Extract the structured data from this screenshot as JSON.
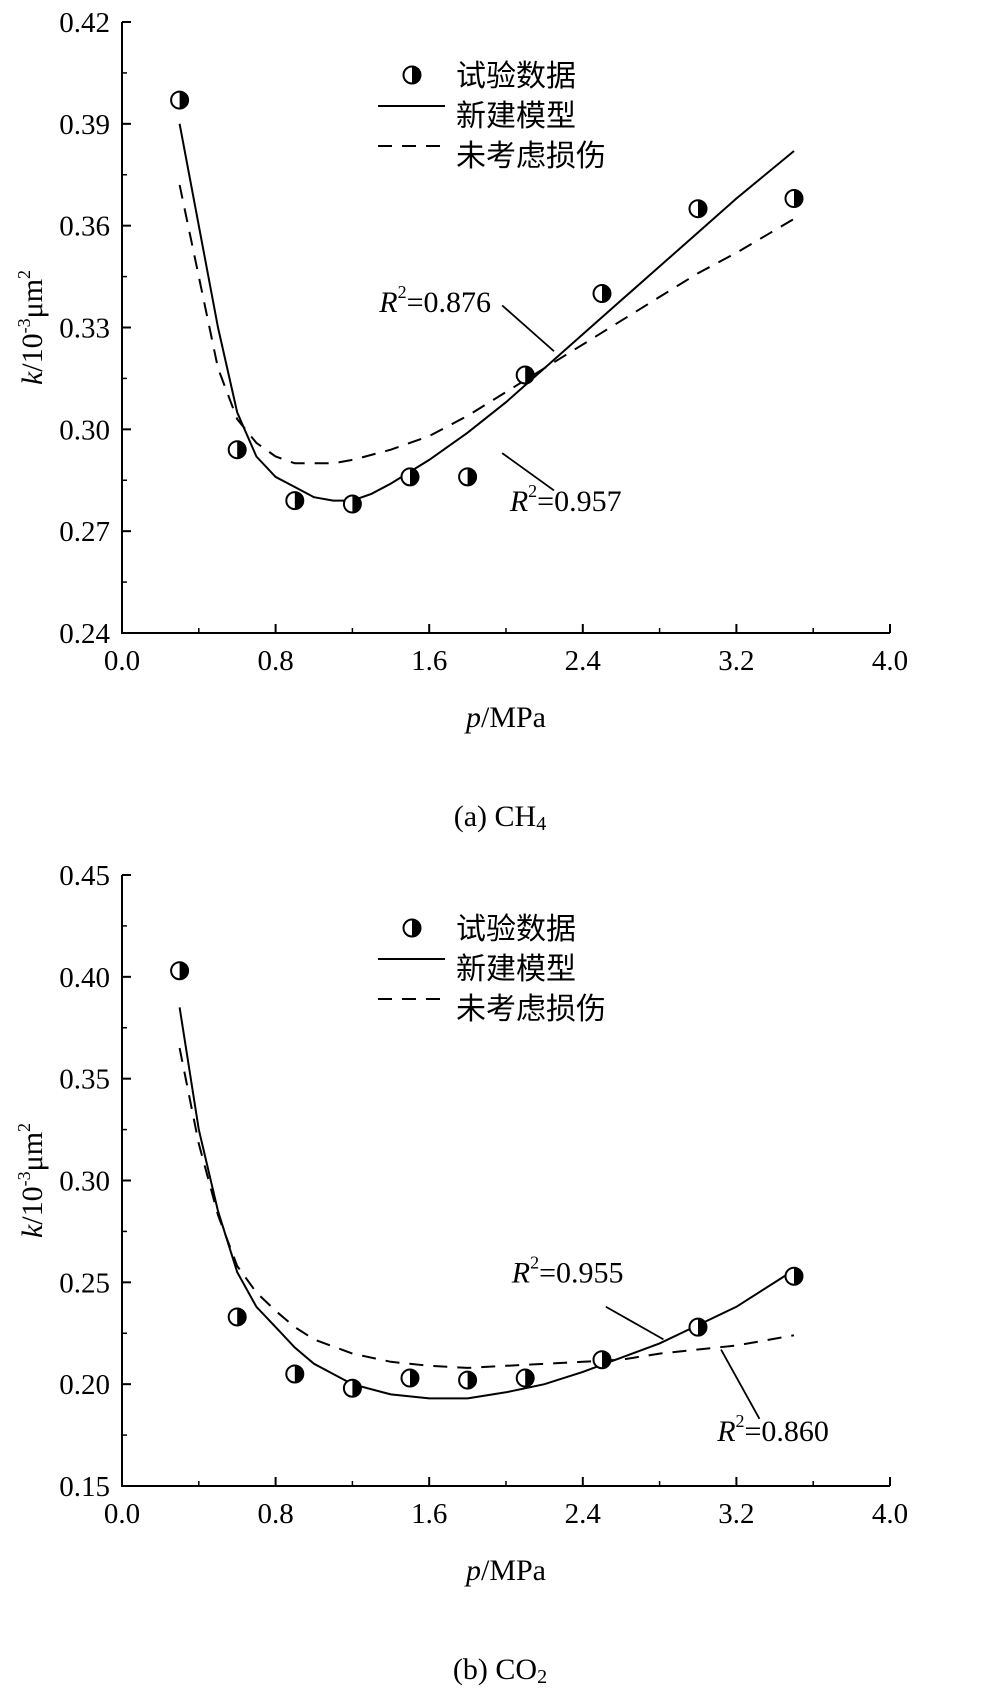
{
  "chart_data": [
    {
      "type": "scatter",
      "caption": "(a) CH4",
      "caption_prefix": "(a) CH",
      "caption_sub": "4",
      "xlabel_italic": "p",
      "xlabel_rest": "/MPa",
      "ylabel_italic": "k",
      "ylabel_mid": "/10",
      "ylabel_sup1": "-3",
      "ylabel_unit": "μm",
      "ylabel_sup2": "2",
      "xlim": [
        0.0,
        4.0
      ],
      "ylim": [
        0.24,
        0.42
      ],
      "xticks": [
        "0.0",
        "0.8",
        "1.6",
        "2.4",
        "3.2",
        "4.0"
      ],
      "yticks": [
        "0.24",
        "0.27",
        "0.30",
        "0.33",
        "0.36",
        "0.39",
        "0.42"
      ],
      "grid": false,
      "legend_position": "top-center",
      "legend": {
        "data": "试验数据",
        "model": "新建模型",
        "nodamage": "未考虑损伤"
      },
      "series": [
        {
          "name": "试验数据",
          "style": "half-filled-circle",
          "x": [
            0.3,
            0.6,
            0.9,
            1.2,
            1.5,
            1.8,
            2.1,
            2.5,
            3.0,
            3.5
          ],
          "y": [
            0.397,
            0.294,
            0.279,
            0.278,
            0.286,
            0.286,
            0.316,
            0.34,
            0.365,
            0.368
          ]
        },
        {
          "name": "新建模型",
          "style": "solid",
          "x": [
            0.3,
            0.4,
            0.5,
            0.6,
            0.7,
            0.8,
            0.9,
            1.0,
            1.1,
            1.2,
            1.3,
            1.4,
            1.6,
            1.8,
            2.0,
            2.2,
            2.4,
            2.6,
            2.8,
            3.0,
            3.2,
            3.5
          ],
          "y": [
            0.39,
            0.36,
            0.33,
            0.305,
            0.292,
            0.286,
            0.283,
            0.28,
            0.279,
            0.279,
            0.281,
            0.284,
            0.291,
            0.299,
            0.308,
            0.318,
            0.328,
            0.338,
            0.348,
            0.358,
            0.368,
            0.382
          ]
        },
        {
          "name": "未考虑损伤",
          "style": "dashed",
          "x": [
            0.3,
            0.4,
            0.5,
            0.6,
            0.7,
            0.8,
            0.9,
            1.0,
            1.1,
            1.2,
            1.4,
            1.6,
            1.8,
            2.0,
            2.2,
            2.4,
            2.6,
            2.8,
            3.0,
            3.2,
            3.5
          ],
          "y": [
            0.372,
            0.345,
            0.318,
            0.303,
            0.296,
            0.292,
            0.29,
            0.29,
            0.29,
            0.291,
            0.294,
            0.298,
            0.304,
            0.311,
            0.318,
            0.325,
            0.332,
            0.339,
            0.346,
            0.352,
            0.362
          ]
        }
      ],
      "annotations": [
        {
          "label": "R",
          "sup": "2",
          "value": "=0.876",
          "x": 1.34,
          "y": 0.3345,
          "line": [
            1.98,
            0.3365,
            2.25,
            0.323
          ]
        },
        {
          "label": "R",
          "sup": "2",
          "value": "=0.957",
          "x": 2.02,
          "y": 0.276,
          "line": [
            1.98,
            0.293,
            2.25,
            0.282
          ]
        }
      ]
    },
    {
      "type": "scatter",
      "caption": "(b) CO2",
      "caption_prefix": "(b) CO",
      "caption_sub": "2",
      "xlabel_italic": "p",
      "xlabel_rest": "/MPa",
      "ylabel_italic": "k",
      "ylabel_mid": "/10",
      "ylabel_sup1": "-3",
      "ylabel_unit": "μm",
      "ylabel_sup2": "2",
      "xlim": [
        0.0,
        4.0
      ],
      "ylim": [
        0.15,
        0.45
      ],
      "xticks": [
        "0.0",
        "0.8",
        "1.6",
        "2.4",
        "3.2",
        "4.0"
      ],
      "yticks": [
        "0.15",
        "0.20",
        "0.25",
        "0.30",
        "0.35",
        "0.40",
        "0.45"
      ],
      "grid": false,
      "legend_position": "top-center",
      "legend": {
        "data": "试验数据",
        "model": "新建模型",
        "nodamage": "未考虑损伤"
      },
      "series": [
        {
          "name": "试验数据",
          "style": "half-filled-circle",
          "x": [
            0.3,
            0.6,
            0.9,
            1.2,
            1.5,
            1.8,
            2.1,
            2.5,
            3.0,
            3.5
          ],
          "y": [
            0.403,
            0.233,
            0.205,
            0.198,
            0.203,
            0.202,
            0.203,
            0.212,
            0.228,
            0.253
          ]
        },
        {
          "name": "新建模型",
          "style": "solid",
          "x": [
            0.3,
            0.4,
            0.5,
            0.6,
            0.7,
            0.8,
            0.9,
            1.0,
            1.2,
            1.4,
            1.6,
            1.8,
            2.0,
            2.2,
            2.4,
            2.6,
            2.8,
            3.0,
            3.2,
            3.5
          ],
          "y": [
            0.385,
            0.325,
            0.285,
            0.255,
            0.238,
            0.228,
            0.218,
            0.21,
            0.2,
            0.195,
            0.193,
            0.193,
            0.196,
            0.2,
            0.206,
            0.213,
            0.22,
            0.229,
            0.238,
            0.256
          ]
        },
        {
          "name": "未考虑损伤",
          "style": "dashed",
          "x": [
            0.3,
            0.4,
            0.5,
            0.6,
            0.7,
            0.8,
            0.9,
            1.0,
            1.2,
            1.4,
            1.6,
            1.8,
            2.0,
            2.2,
            2.4,
            2.6,
            2.8,
            3.0,
            3.2,
            3.5
          ],
          "y": [
            0.365,
            0.318,
            0.283,
            0.258,
            0.245,
            0.236,
            0.228,
            0.222,
            0.215,
            0.211,
            0.209,
            0.208,
            0.209,
            0.21,
            0.211,
            0.212,
            0.215,
            0.217,
            0.219,
            0.224
          ]
        }
      ],
      "annotations": [
        {
          "label": "R",
          "sup": "2",
          "value": "=0.955",
          "x": 2.03,
          "y": 0.25,
          "line": [
            2.52,
            0.238,
            2.82,
            0.222
          ]
        },
        {
          "label": "R",
          "sup": "2",
          "value": "=0.860",
          "x": 3.1,
          "y": 0.172,
          "line": [
            3.12,
            0.217,
            3.32,
            0.183
          ]
        }
      ]
    }
  ]
}
